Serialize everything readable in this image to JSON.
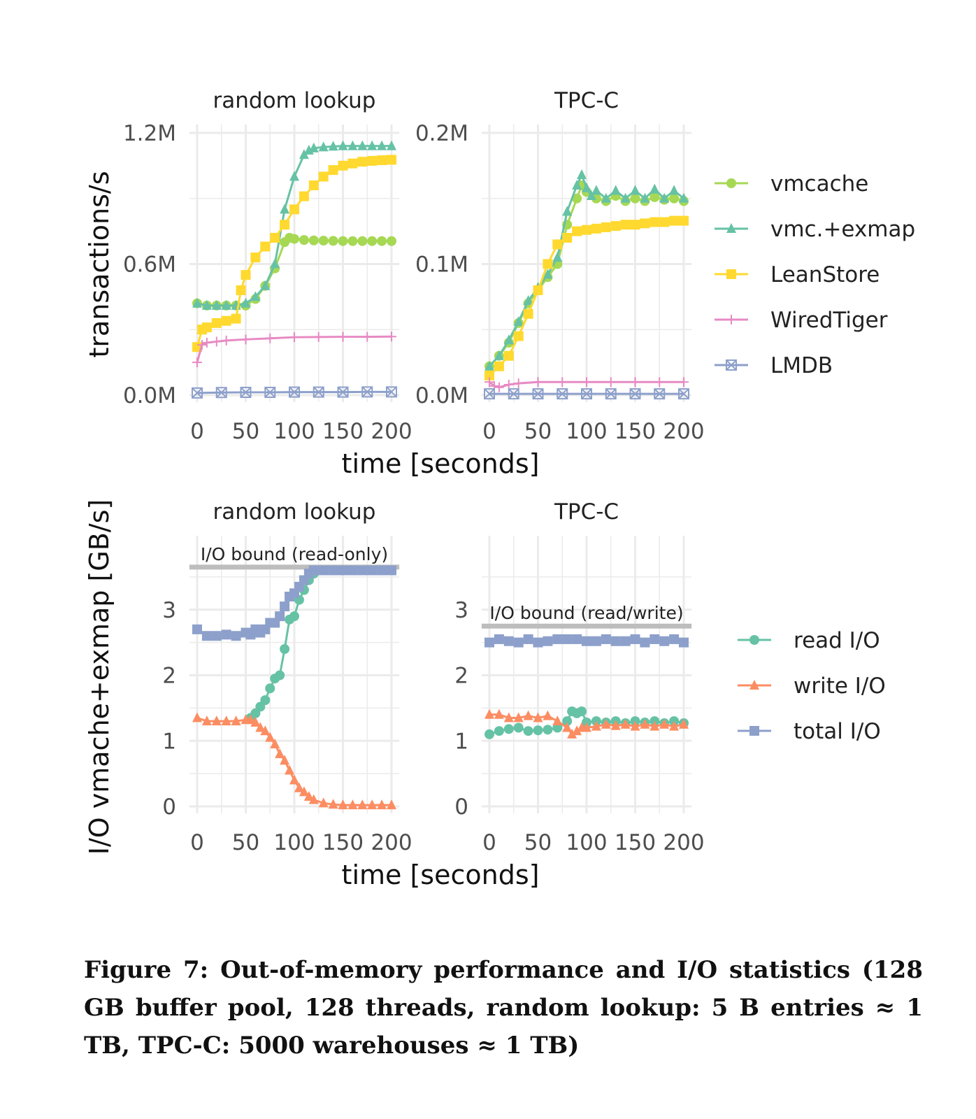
{
  "figure": {
    "caption": "Figure 7: Out-of-memory performance and I/O statistics (128 GB buffer pool, 128 threads, random lookup: 5 B entries ≈ 1 TB, TPC-C: 5000 warehouses ≈ 1 TB)"
  },
  "colors": {
    "vmcache": "#a6d854",
    "vmc_exmap": "#66c2a5",
    "LeanStore": "#ffd92f",
    "WiredTiger": "#e78ac3",
    "LMDB": "#8da0cb",
    "read_io": "#66c2a5",
    "write_io": "#fc8d62",
    "total_io": "#8da0cb",
    "bound": "#bdbdbd",
    "grid": "#ebebeb"
  },
  "chart_data": [
    {
      "type": "line",
      "title": "random lookup",
      "xlabel": "time [seconds]",
      "ylabel": "transactions/s",
      "xlim": [
        0,
        200
      ],
      "ylim": [
        0,
        1200000
      ],
      "xticks": [
        "0",
        "50",
        "100",
        "150",
        "200"
      ],
      "yticks": [
        "0.0M",
        "0.6M",
        "1.2M"
      ],
      "series": [
        {
          "name": "vmcache",
          "x": [
            0,
            10,
            20,
            30,
            40,
            50,
            60,
            70,
            80,
            90,
            95,
            100,
            110,
            120,
            130,
            140,
            150,
            160,
            170,
            180,
            190,
            200
          ],
          "values": [
            420000,
            410000,
            410000,
            410000,
            410000,
            410000,
            440000,
            500000,
            580000,
            700000,
            720000,
            715000,
            710000,
            708000,
            707000,
            706000,
            705000,
            705000,
            705000,
            705000,
            705000,
            705000
          ]
        },
        {
          "name": "vmc.+exmap",
          "x": [
            0,
            10,
            20,
            30,
            40,
            50,
            60,
            70,
            80,
            90,
            100,
            110,
            115,
            120,
            130,
            140,
            150,
            160,
            170,
            180,
            190,
            200
          ],
          "values": [
            420000,
            410000,
            410000,
            410000,
            410000,
            420000,
            450000,
            500000,
            600000,
            850000,
            1000000,
            1100000,
            1120000,
            1130000,
            1135000,
            1138000,
            1140000,
            1140000,
            1140000,
            1140000,
            1140000,
            1140000
          ]
        },
        {
          "name": "LeanStore",
          "x": [
            0,
            5,
            10,
            20,
            30,
            40,
            45,
            50,
            60,
            70,
            80,
            90,
            100,
            110,
            120,
            130,
            140,
            150,
            160,
            170,
            180,
            190,
            200
          ],
          "values": [
            220000,
            300000,
            310000,
            330000,
            340000,
            350000,
            480000,
            550000,
            630000,
            680000,
            720000,
            780000,
            850000,
            910000,
            960000,
            1000000,
            1030000,
            1050000,
            1060000,
            1068000,
            1072000,
            1075000,
            1077000
          ]
        },
        {
          "name": "WiredTiger",
          "x": [
            0,
            5,
            10,
            20,
            30,
            50,
            75,
            100,
            125,
            150,
            175,
            200
          ],
          "values": [
            150000,
            230000,
            240000,
            245000,
            250000,
            255000,
            260000,
            265000,
            266000,
            267000,
            267000,
            268000
          ]
        },
        {
          "name": "LMDB",
          "x": [
            0,
            25,
            50,
            75,
            100,
            125,
            150,
            175,
            200
          ],
          "values": [
            10000,
            12000,
            13000,
            13000,
            14000,
            14000,
            14000,
            15000,
            15000
          ]
        }
      ]
    },
    {
      "type": "line",
      "title": "TPC-C",
      "xlabel": "time [seconds]",
      "ylabel": "transactions/s",
      "xlim": [
        0,
        200
      ],
      "ylim": [
        0,
        200000
      ],
      "xticks": [
        "0",
        "50",
        "100",
        "150",
        "200"
      ],
      "yticks": [
        "0.0M",
        "0.1M",
        "0.2M"
      ],
      "series": [
        {
          "name": "vmcache",
          "x": [
            0,
            10,
            20,
            30,
            40,
            50,
            60,
            70,
            80,
            90,
            95,
            100,
            110,
            120,
            130,
            140,
            150,
            160,
            170,
            180,
            190,
            200
          ],
          "values": [
            22000,
            30000,
            40000,
            55000,
            70000,
            80000,
            90000,
            100000,
            130000,
            150000,
            160000,
            155000,
            150000,
            148000,
            152000,
            148000,
            150000,
            148000,
            151000,
            149000,
            150000,
            148000
          ]
        },
        {
          "name": "vmc.+exmap",
          "x": [
            0,
            10,
            20,
            30,
            40,
            50,
            60,
            70,
            80,
            90,
            95,
            100,
            105,
            110,
            120,
            130,
            140,
            150,
            160,
            170,
            180,
            190,
            200
          ],
          "values": [
            22000,
            30000,
            42000,
            56000,
            72000,
            82000,
            92000,
            105000,
            140000,
            160000,
            168000,
            158000,
            152000,
            156000,
            150000,
            156000,
            150000,
            156000,
            150000,
            157000,
            150000,
            156000,
            150000
          ]
        },
        {
          "name": "LeanStore",
          "x": [
            0,
            10,
            20,
            30,
            40,
            50,
            60,
            70,
            80,
            90,
            100,
            110,
            120,
            130,
            140,
            150,
            160,
            170,
            180,
            190,
            200
          ],
          "values": [
            15000,
            22000,
            30000,
            45000,
            62000,
            80000,
            100000,
            115000,
            120000,
            125000,
            126000,
            127000,
            128000,
            129000,
            130000,
            130000,
            131000,
            132000,
            132000,
            133000,
            133000
          ]
        },
        {
          "name": "WiredTiger",
          "x": [
            0,
            5,
            10,
            20,
            30,
            50,
            75,
            100,
            125,
            150,
            175,
            200
          ],
          "values": [
            10000,
            7000,
            6000,
            8000,
            9000,
            10000,
            10000,
            10000,
            10000,
            10000,
            10000,
            10000
          ]
        },
        {
          "name": "LMDB",
          "x": [
            0,
            25,
            50,
            75,
            100,
            125,
            150,
            175,
            200
          ],
          "values": [
            1000,
            1000,
            1000,
            1000,
            1000,
            1000,
            1000,
            1000,
            1000
          ]
        }
      ]
    },
    {
      "type": "line",
      "title": "random lookup",
      "xlabel": "time [seconds]",
      "ylabel": "I/O vmache+exmap [GB/s]",
      "xlim": [
        0,
        200
      ],
      "ylim": [
        0,
        4
      ],
      "xticks": [
        "0",
        "50",
        "100",
        "150",
        "200"
      ],
      "yticks": [
        "0",
        "1",
        "2",
        "3"
      ],
      "annotation": {
        "text": "I/O bound (read-only)",
        "y": 3.65
      },
      "series": [
        {
          "name": "read I/O",
          "x": [
            55,
            60,
            65,
            70,
            75,
            80,
            85,
            90,
            95,
            100,
            105,
            110,
            115,
            120,
            130,
            140,
            150,
            160,
            170,
            180,
            190,
            200
          ],
          "values": [
            1.35,
            1.42,
            1.52,
            1.62,
            1.8,
            1.95,
            2.0,
            2.4,
            2.85,
            2.9,
            3.15,
            3.3,
            3.45,
            3.55,
            3.6,
            3.6,
            3.6,
            3.6,
            3.6,
            3.6,
            3.6,
            3.6
          ]
        },
        {
          "name": "write I/O",
          "x": [
            0,
            10,
            20,
            30,
            40,
            50,
            55,
            60,
            65,
            70,
            75,
            80,
            85,
            90,
            95,
            100,
            105,
            110,
            115,
            120,
            130,
            140,
            150,
            160,
            170,
            180,
            190,
            200
          ],
          "values": [
            1.35,
            1.3,
            1.3,
            1.3,
            1.3,
            1.32,
            1.32,
            1.28,
            1.2,
            1.15,
            1.05,
            0.95,
            0.8,
            0.7,
            0.55,
            0.4,
            0.28,
            0.22,
            0.15,
            0.1,
            0.05,
            0.03,
            0.02,
            0.02,
            0.02,
            0.02,
            0.02,
            0.02
          ]
        },
        {
          "name": "total I/O",
          "x": [
            0,
            10,
            20,
            30,
            40,
            50,
            55,
            60,
            65,
            70,
            75,
            80,
            85,
            90,
            95,
            100,
            105,
            110,
            115,
            120,
            130,
            140,
            150,
            160,
            170,
            180,
            190,
            200
          ],
          "values": [
            2.7,
            2.6,
            2.6,
            2.62,
            2.6,
            2.65,
            2.62,
            2.7,
            2.65,
            2.7,
            2.8,
            2.8,
            2.9,
            3.05,
            3.2,
            3.25,
            3.35,
            3.45,
            3.55,
            3.6,
            3.6,
            3.6,
            3.6,
            3.6,
            3.6,
            3.6,
            3.6,
            3.6
          ]
        }
      ]
    },
    {
      "type": "line",
      "title": "TPC-C",
      "xlabel": "time [seconds]",
      "ylabel": "I/O vmache+exmap [GB/s]",
      "xlim": [
        0,
        200
      ],
      "ylim": [
        0,
        4
      ],
      "xticks": [
        "0",
        "50",
        "100",
        "150",
        "200"
      ],
      "yticks": [
        "0",
        "1",
        "2",
        "3"
      ],
      "annotation": {
        "text": "I/O bound (read/write)",
        "y": 2.75
      },
      "series": [
        {
          "name": "read I/O",
          "x": [
            0,
            10,
            20,
            30,
            40,
            50,
            60,
            70,
            80,
            85,
            90,
            95,
            100,
            110,
            120,
            130,
            140,
            150,
            160,
            170,
            180,
            190,
            200
          ],
          "values": [
            1.1,
            1.15,
            1.18,
            1.2,
            1.15,
            1.16,
            1.17,
            1.2,
            1.3,
            1.45,
            1.42,
            1.45,
            1.28,
            1.3,
            1.28,
            1.3,
            1.27,
            1.3,
            1.28,
            1.3,
            1.27,
            1.3,
            1.27
          ]
        },
        {
          "name": "write I/O",
          "x": [
            0,
            10,
            20,
            30,
            40,
            50,
            60,
            70,
            80,
            85,
            90,
            95,
            100,
            110,
            120,
            130,
            140,
            150,
            160,
            170,
            180,
            190,
            200
          ],
          "values": [
            1.4,
            1.4,
            1.35,
            1.35,
            1.38,
            1.35,
            1.38,
            1.3,
            1.2,
            1.1,
            1.15,
            1.2,
            1.2,
            1.22,
            1.25,
            1.23,
            1.25,
            1.22,
            1.25,
            1.22,
            1.25,
            1.22,
            1.25
          ]
        },
        {
          "name": "total I/O",
          "x": [
            0,
            10,
            20,
            30,
            40,
            50,
            60,
            70,
            80,
            90,
            100,
            110,
            120,
            130,
            140,
            150,
            160,
            170,
            180,
            190,
            200
          ],
          "values": [
            2.5,
            2.55,
            2.52,
            2.5,
            2.55,
            2.5,
            2.52,
            2.55,
            2.55,
            2.55,
            2.52,
            2.52,
            2.55,
            2.52,
            2.52,
            2.55,
            2.5,
            2.55,
            2.52,
            2.55,
            2.5
          ]
        }
      ]
    }
  ],
  "legends": [
    {
      "items": [
        {
          "name": "vmcache",
          "marker": "circle"
        },
        {
          "name": "vmc.+exmap",
          "marker": "triangle"
        },
        {
          "name": "LeanStore",
          "marker": "square"
        },
        {
          "name": "WiredTiger",
          "marker": "plus"
        },
        {
          "name": "LMDB",
          "marker": "boxx"
        }
      ]
    },
    {
      "items": [
        {
          "name": "read I/O",
          "marker": "circle"
        },
        {
          "name": "write I/O",
          "marker": "triangle"
        },
        {
          "name": "total I/O",
          "marker": "square"
        }
      ]
    }
  ]
}
